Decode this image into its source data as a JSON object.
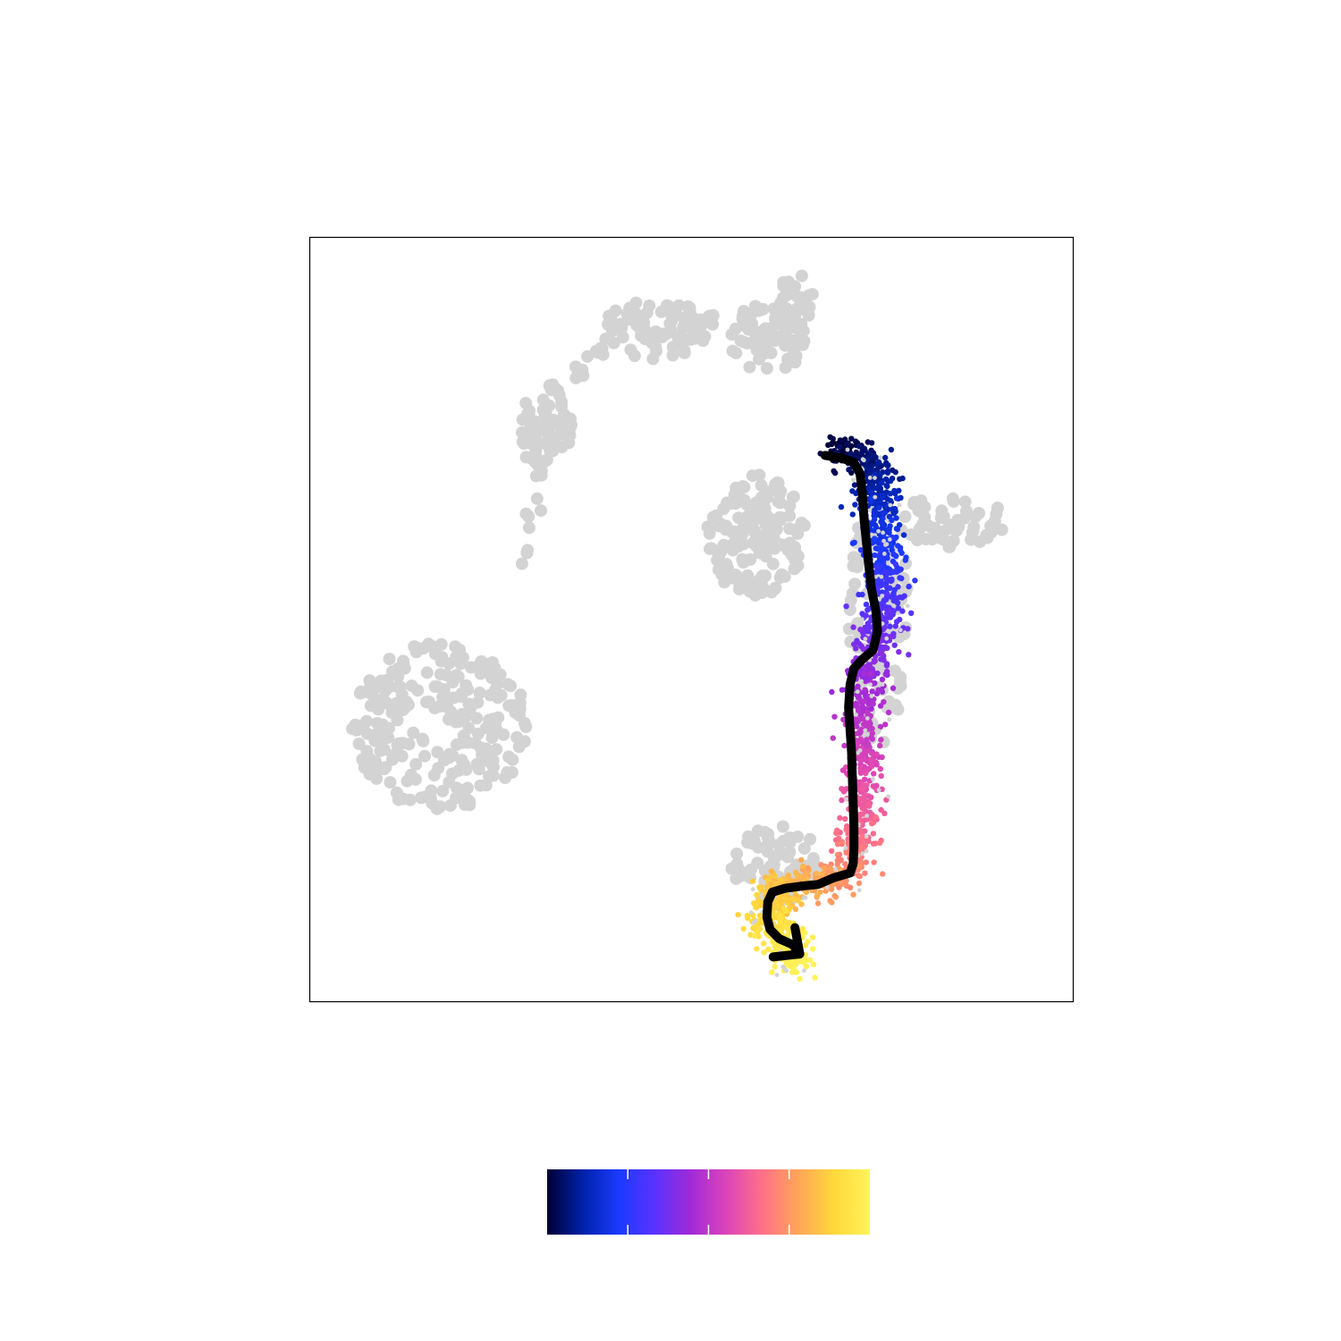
{
  "chart_data": {
    "type": "scatter",
    "title": "",
    "xlabel": "",
    "ylabel": "",
    "xlim": [
      0,
      100
    ],
    "ylim": [
      0,
      100
    ],
    "grid": false,
    "axis_ticks": false,
    "background_color": "#d3d3d3",
    "clusters": [
      {
        "name": "",
        "kind": "blob",
        "cx": 17,
        "cy": 36,
        "rx": 11.5,
        "ry": 11,
        "n": 260
      },
      {
        "name": "",
        "kind": "blob",
        "cx": 31,
        "cy": 75,
        "rx": 3.5,
        "ry": 6,
        "n": 80
      },
      {
        "name": "",
        "kind": "blob",
        "cx": 45,
        "cy": 88,
        "rx": 7,
        "ry": 4,
        "n": 80
      },
      {
        "name": "",
        "kind": "blob",
        "cx": 60,
        "cy": 87,
        "rx": 5.5,
        "ry": 4.5,
        "n": 70
      },
      {
        "name": "",
        "kind": "blob",
        "cx": 63.5,
        "cy": 92,
        "rx": 2.5,
        "ry": 3.5,
        "n": 30
      },
      {
        "name": "",
        "kind": "blob",
        "cx": 58.5,
        "cy": 61,
        "rx": 6.5,
        "ry": 8,
        "n": 150
      },
      {
        "name": "",
        "kind": "blob",
        "cx": 84,
        "cy": 63,
        "rx": 7.5,
        "ry": 3.5,
        "n": 60
      },
      {
        "name": "",
        "kind": "blob",
        "cx": 61,
        "cy": 18,
        "rx": 6,
        "ry": 5,
        "n": 70
      },
      {
        "name": "",
        "kind": "blob",
        "cx": 74.5,
        "cy": 50,
        "rx": 4,
        "ry": 17,
        "n": 90
      },
      {
        "name": "",
        "kind": "bridge",
        "from": [
          28,
          57
        ],
        "to": [
          31,
          71
        ],
        "n": 10
      },
      {
        "name": "",
        "kind": "bridge",
        "from": [
          34,
          81
        ],
        "to": [
          40,
          88
        ],
        "n": 12
      },
      {
        "name": "",
        "kind": "bridge",
        "from": [
          51,
          90
        ],
        "to": [
          56,
          88
        ],
        "n": 8
      }
    ],
    "highlighted_lineage": {
      "colorbar_min": 0,
      "colorbar_max": 1,
      "colorbar_ticks": [
        0.25,
        0.5,
        0.75
      ],
      "colormap": [
        "#000033",
        "#0022aa",
        "#1a3aff",
        "#5a32ff",
        "#a02ad8",
        "#dc44b8",
        "#ff7088",
        "#ffa558",
        "#ffd83a",
        "#fff35a"
      ],
      "points": [
        {
          "x": 69.5,
          "y": 72.5,
          "t": 0.0
        },
        {
          "x": 71.8,
          "y": 71.4,
          "t": 0.04
        },
        {
          "x": 74.0,
          "y": 69.6,
          "t": 0.08
        },
        {
          "x": 74.6,
          "y": 66.5,
          "t": 0.12
        },
        {
          "x": 74.6,
          "y": 63.0,
          "t": 0.17
        },
        {
          "x": 75.0,
          "y": 59.5,
          "t": 0.22
        },
        {
          "x": 75.4,
          "y": 55.5,
          "t": 0.27
        },
        {
          "x": 75.6,
          "y": 51.5,
          "t": 0.32
        },
        {
          "x": 74.8,
          "y": 48.0,
          "t": 0.37
        },
        {
          "x": 73.3,
          "y": 44.5,
          "t": 0.41
        },
        {
          "x": 72.6,
          "y": 40.5,
          "t": 0.45
        },
        {
          "x": 72.4,
          "y": 36.0,
          "t": 0.5
        },
        {
          "x": 72.4,
          "y": 31.5,
          "t": 0.55
        },
        {
          "x": 72.3,
          "y": 27.0,
          "t": 0.6
        },
        {
          "x": 72.0,
          "y": 22.5,
          "t": 0.65
        },
        {
          "x": 71.2,
          "y": 18.5,
          "t": 0.7
        },
        {
          "x": 68.5,
          "y": 16.0,
          "t": 0.75
        },
        {
          "x": 65.0,
          "y": 15.5,
          "t": 0.8
        },
        {
          "x": 61.0,
          "y": 14.5,
          "t": 0.85
        },
        {
          "x": 60.2,
          "y": 11.5,
          "t": 0.89
        },
        {
          "x": 61.0,
          "y": 8.5,
          "t": 0.93
        },
        {
          "x": 63.0,
          "y": 6.3,
          "t": 0.97
        },
        {
          "x": 64.0,
          "y": 5.5,
          "t": 1.0
        }
      ]
    },
    "trajectory": {
      "color": "#000000",
      "path": [
        [
          67.5,
          71.5
        ],
        [
          69.5,
          71.2
        ],
        [
          71.3,
          70.6
        ],
        [
          72.1,
          69.1
        ],
        [
          72.4,
          66.5
        ],
        [
          72.6,
          63.5
        ],
        [
          72.9,
          60.5
        ],
        [
          73.2,
          57.5
        ],
        [
          73.6,
          54.0
        ],
        [
          74.2,
          51.0
        ],
        [
          74.4,
          48.5
        ],
        [
          73.8,
          46.0
        ],
        [
          72.4,
          44.8
        ],
        [
          71.3,
          43.6
        ],
        [
          70.8,
          41.5
        ],
        [
          70.6,
          38.5
        ],
        [
          70.8,
          35.5
        ],
        [
          71.0,
          32.5
        ],
        [
          71.1,
          29.0
        ],
        [
          71.2,
          26.0
        ],
        [
          71.3,
          23.0
        ],
        [
          71.3,
          20.0
        ],
        [
          71.2,
          18.0
        ],
        [
          70.8,
          16.8
        ],
        [
          68.7,
          16.2
        ],
        [
          66.6,
          15.3
        ],
        [
          64.6,
          15.1
        ],
        [
          62.3,
          14.8
        ],
        [
          60.6,
          14.3
        ],
        [
          60.0,
          13.0
        ],
        [
          59.9,
          11.0
        ],
        [
          60.3,
          9.4
        ],
        [
          61.5,
          8.2
        ],
        [
          63.3,
          7.4
        ],
        [
          64.2,
          6.2
        ]
      ],
      "arrow": true
    }
  }
}
